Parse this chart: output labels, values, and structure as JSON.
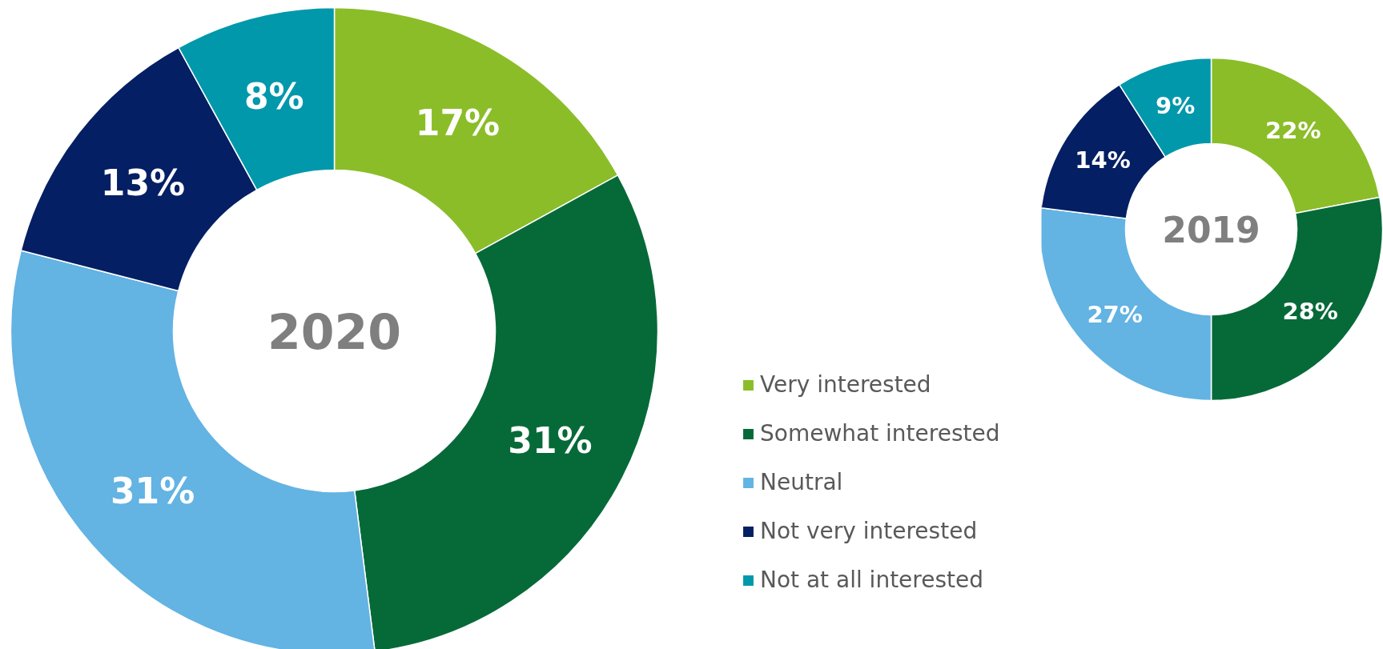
{
  "chart_data": [
    {
      "type": "donut",
      "title": "2020",
      "categories": [
        "Very interested",
        "Somewhat interested",
        "Neutral",
        "Not very interested",
        "Not at all interested"
      ],
      "values": [
        17,
        31,
        31,
        13,
        8
      ],
      "colors": [
        "#8bbd29",
        "#066a38",
        "#63b3e3",
        "#041f63",
        "#0098aa"
      ],
      "value_labels": [
        "17%",
        "31%",
        "31%",
        "13%",
        "8%"
      ],
      "legend": "right"
    },
    {
      "type": "donut",
      "title": "2019",
      "categories": [
        null,
        null,
        null,
        null,
        null
      ],
      "values": [
        22,
        28,
        27,
        14,
        9
      ],
      "colors": [
        "#8bbd29",
        "#066a38",
        "#63b3e3",
        "#041f63",
        "#0098aa"
      ],
      "value_labels": [
        "22%",
        "28%",
        "27%",
        "14%",
        "9%"
      ]
    }
  ]
}
